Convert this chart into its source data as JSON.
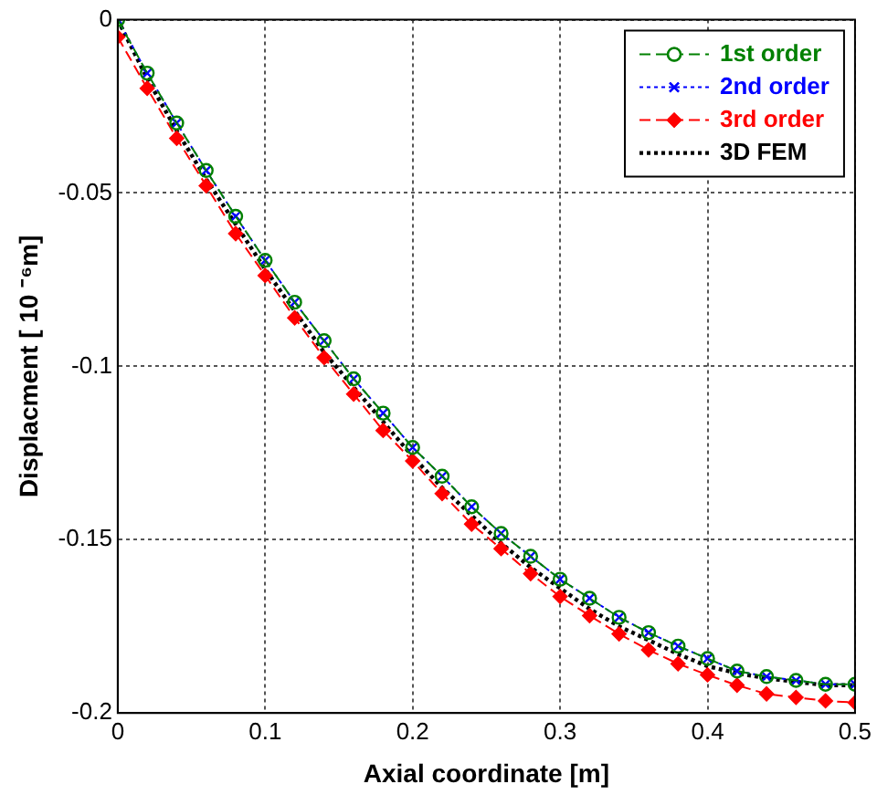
{
  "chart_data": {
    "type": "line",
    "xlabel": "Axial coordinate [m]",
    "ylabel": "Displacment [ 10 ⁻⁶m]",
    "x": [
      0,
      0.02,
      0.04,
      0.06,
      0.08,
      0.1,
      0.12,
      0.14,
      0.16,
      0.18,
      0.2,
      0.22,
      0.24,
      0.26,
      0.28,
      0.3,
      0.32,
      0.34,
      0.36,
      0.38,
      0.4,
      0.42,
      0.44,
      0.46,
      0.48,
      0.5
    ],
    "xlim": [
      0,
      0.5
    ],
    "xticks": [
      0,
      0.1,
      0.2,
      0.3,
      0.4,
      0.5
    ],
    "ylim": [
      -0.2,
      0
    ],
    "yticks": [
      -0.2,
      -0.15,
      -0.1,
      -0.05,
      0
    ],
    "grid": true,
    "legend": "top right",
    "series": [
      {
        "name": "1st order",
        "color": "#008000",
        "marker": "circle",
        "line_style": "dashed",
        "values": [
          0,
          -0.0154,
          -0.0298,
          -0.0435,
          -0.0567,
          -0.0694,
          -0.0815,
          -0.0926,
          -0.1036,
          -0.1135,
          -0.1234,
          -0.1317,
          -0.1405,
          -0.1482,
          -0.1548,
          -0.1614,
          -0.1669,
          -0.1724,
          -0.1768,
          -0.1807,
          -0.1843,
          -0.1879,
          -0.1895,
          -0.1906,
          -0.1917,
          -0.1917
        ]
      },
      {
        "name": "2nd order",
        "color": "#0000ff",
        "marker": "cross",
        "line_style": "dotted",
        "values": [
          0,
          -0.0154,
          -0.0298,
          -0.0435,
          -0.0567,
          -0.0694,
          -0.0815,
          -0.0926,
          -0.1036,
          -0.1135,
          -0.1234,
          -0.1317,
          -0.1405,
          -0.1482,
          -0.1548,
          -0.1614,
          -0.1669,
          -0.1724,
          -0.1768,
          -0.1807,
          -0.1843,
          -0.1879,
          -0.1895,
          -0.1906,
          -0.1917,
          -0.1917
        ]
      },
      {
        "name": "3rd order",
        "color": "#ff0000",
        "marker": "diamond",
        "line_style": "dashed",
        "values": [
          -0.005,
          -0.0198,
          -0.0342,
          -0.0479,
          -0.0617,
          -0.0738,
          -0.086,
          -0.0975,
          -0.108,
          -0.1185,
          -0.1273,
          -0.1367,
          -0.1455,
          -0.1526,
          -0.1598,
          -0.1664,
          -0.1719,
          -0.1772,
          -0.1818,
          -0.1858,
          -0.189,
          -0.192,
          -0.1945,
          -0.1955,
          -0.1965,
          -0.197
        ]
      },
      {
        "name": "3D FEM",
        "color": "#000000",
        "marker": "none",
        "line_style": "dotted",
        "values": [
          0,
          -0.017,
          -0.032,
          -0.046,
          -0.059,
          -0.072,
          -0.084,
          -0.096,
          -0.106,
          -0.116,
          -0.126,
          -0.135,
          -0.143,
          -0.151,
          -0.158,
          -0.164,
          -0.17,
          -0.175,
          -0.179,
          -0.183,
          -0.1865,
          -0.1885,
          -0.19,
          -0.191,
          -0.192,
          -0.192
        ]
      }
    ]
  }
}
